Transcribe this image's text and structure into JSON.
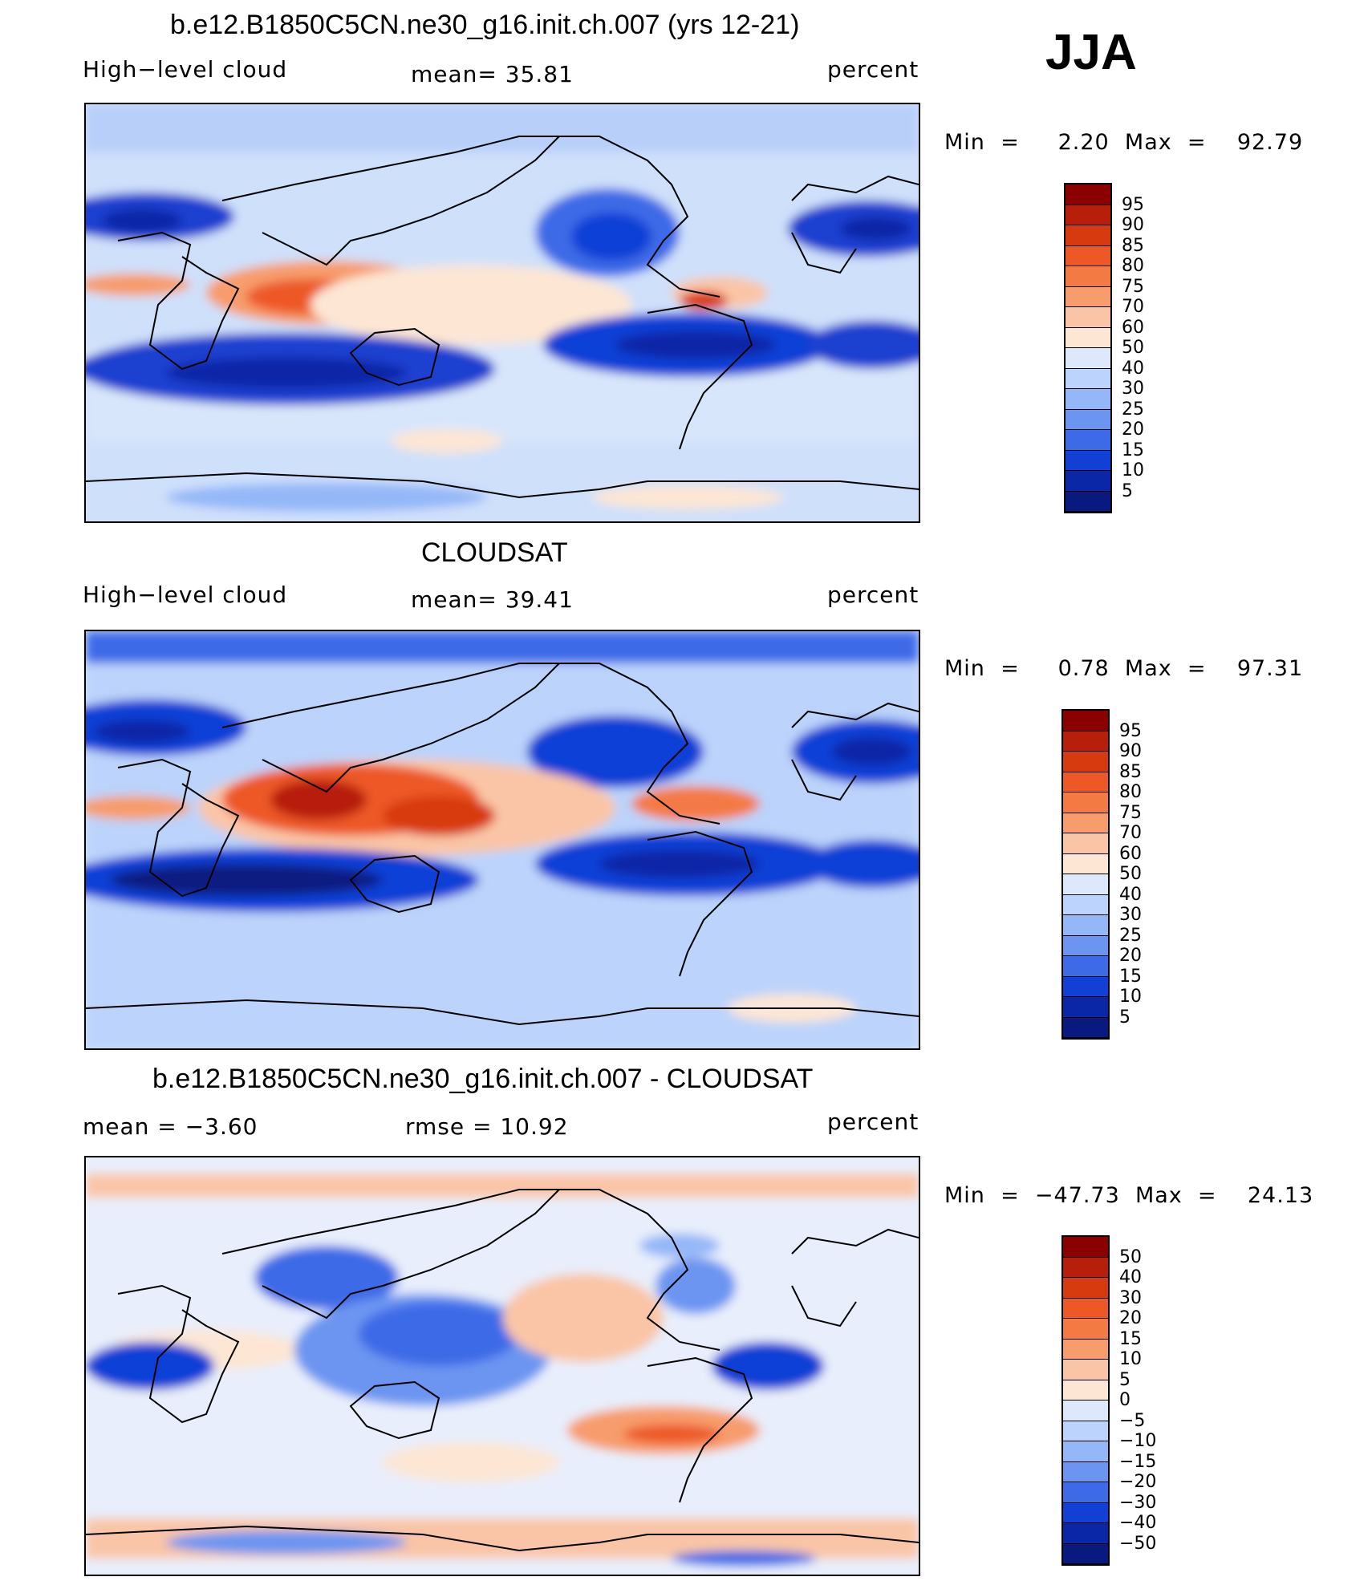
{
  "season": "JJA",
  "panels": [
    {
      "title": "b.e12.B1850C5CN.ne30_g16.init.ch.007 (yrs 12-21)",
      "left_label": "High−level cloud",
      "center_label": "mean=   35.81",
      "right_label": "percent",
      "minmax": "Min  =     2.20  Max  =    92.79",
      "levels": [
        "95",
        "90",
        "85",
        "80",
        "75",
        "70",
        "60",
        "50",
        "40",
        "30",
        "25",
        "20",
        "15",
        "10",
        "5"
      ],
      "colors": [
        "#8b0000",
        "#b71f0a",
        "#d83a10",
        "#ed5826",
        "#f47a44",
        "#f79c6c",
        "#fac5a6",
        "#fde6d4",
        "#dde9fa",
        "#bcd3fb",
        "#94b7f8",
        "#6c95f1",
        "#3d6ae7",
        "#1040d6",
        "#0a27a8",
        "#081a80"
      ]
    },
    {
      "title": "CLOUDSAT",
      "left_label": "High−level cloud",
      "center_label": "mean=   39.41",
      "right_label": "percent",
      "minmax": "Min  =     0.78  Max  =    97.31",
      "levels": [
        "95",
        "90",
        "85",
        "80",
        "75",
        "70",
        "60",
        "50",
        "40",
        "30",
        "25",
        "20",
        "15",
        "10",
        "5"
      ],
      "colors": [
        "#8b0000",
        "#b71f0a",
        "#d83a10",
        "#ed5826",
        "#f47a44",
        "#f79c6c",
        "#fac5a6",
        "#fde6d4",
        "#dde9fa",
        "#bcd3fb",
        "#94b7f8",
        "#6c95f1",
        "#3d6ae7",
        "#1040d6",
        "#0a27a8",
        "#081a80"
      ]
    },
    {
      "title": "b.e12.B1850C5CN.ne30_g16.init.ch.007 - CLOUDSAT",
      "left_label": "mean  =    −3.60",
      "center_label": "rmse  =    10.92",
      "right_label": "percent",
      "minmax": "Min  =  −47.73  Max  =    24.13",
      "levels": [
        "50",
        "40",
        "30",
        "20",
        "15",
        "10",
        "5",
        "0",
        "−5",
        "−10",
        "−15",
        "−20",
        "−30",
        "−40",
        "−50"
      ],
      "colors": [
        "#8b0000",
        "#b71f0a",
        "#d83a10",
        "#ed5826",
        "#f47a44",
        "#f79c6c",
        "#fac5a6",
        "#fde6d4",
        "#dde9fa",
        "#bcd3fb",
        "#94b7f8",
        "#6c95f1",
        "#3d6ae7",
        "#1040d6",
        "#0a27a8",
        "#081a80"
      ]
    }
  ]
}
